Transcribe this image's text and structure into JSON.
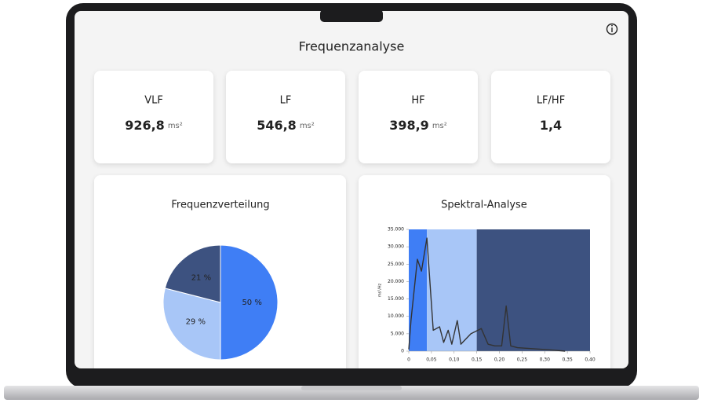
{
  "header": {
    "title": "Frequenzanalyse"
  },
  "cards": [
    {
      "label": "VLF",
      "value": "926,8",
      "unit": "ms²"
    },
    {
      "label": "LF",
      "value": "546,8",
      "unit": "ms²"
    },
    {
      "label": "HF",
      "value": "398,9",
      "unit": "ms²"
    },
    {
      "label": "LF/HF",
      "value": "1,4"
    }
  ],
  "chart_data": [
    {
      "type": "pie",
      "title": "Frequenzverteilung",
      "values": [
        50,
        29,
        21
      ],
      "value_labels": [
        "50 %",
        "29 %",
        "21 %"
      ],
      "colors": [
        "#3f7ef5",
        "#a8c6f7",
        "#3d5280"
      ]
    },
    {
      "type": "line",
      "title": "Spektral-Analyse",
      "y_label": "ms²/Hz",
      "xlim": [
        0,
        0.4
      ],
      "ylim": [
        0,
        35000
      ],
      "xticks": [
        0,
        {
          "value": 0.05,
          "label": "0,05"
        },
        {
          "value": 0.1,
          "label": "0,10"
        },
        {
          "value": 0.15,
          "label": "0,15"
        },
        {
          "value": 0.2,
          "label": "0,20"
        },
        {
          "value": 0.25,
          "label": "0,25"
        },
        {
          "value": 0.3,
          "label": "0,30"
        },
        {
          "value": 0.35,
          "label": "0,35"
        },
        {
          "value": 0.4,
          "label": "0,40"
        }
      ],
      "yticks": [
        0,
        {
          "value": 5000,
          "label": "5.000"
        },
        {
          "value": 10000,
          "label": "10.000"
        },
        {
          "value": 15000,
          "label": "15.000"
        },
        {
          "value": 20000,
          "label": "20.000"
        },
        {
          "value": 25000,
          "label": "25.000"
        },
        {
          "value": 30000,
          "label": "30.000"
        },
        {
          "value": 35000,
          "label": "35.000"
        }
      ],
      "bands": [
        {
          "from": 0,
          "to": 0.04,
          "color": "#3f7ef5"
        },
        {
          "from": 0.04,
          "to": 0.15,
          "color": "#a8c6f7"
        },
        {
          "from": 0.15,
          "to": 0.4,
          "color": "#3d5280"
        }
      ],
      "series": [
        {
          "color": "#333333",
          "x": [
            0,
            0.005,
            0.019,
            0.028,
            0.04,
            0.054,
            0.068,
            0.077,
            0.087,
            0.095,
            0.107,
            0.115,
            0.137,
            0.16,
            0.175,
            0.19,
            0.205,
            0.215,
            0.225,
            0.24,
            0.275,
            0.32,
            0.345
          ],
          "values": [
            500,
            9000,
            26400,
            23000,
            32500,
            6000,
            7000,
            2500,
            6000,
            2000,
            8800,
            2000,
            5000,
            6500,
            2000,
            1500,
            1500,
            13000,
            1500,
            1000,
            700,
            300,
            0
          ]
        }
      ]
    }
  ]
}
